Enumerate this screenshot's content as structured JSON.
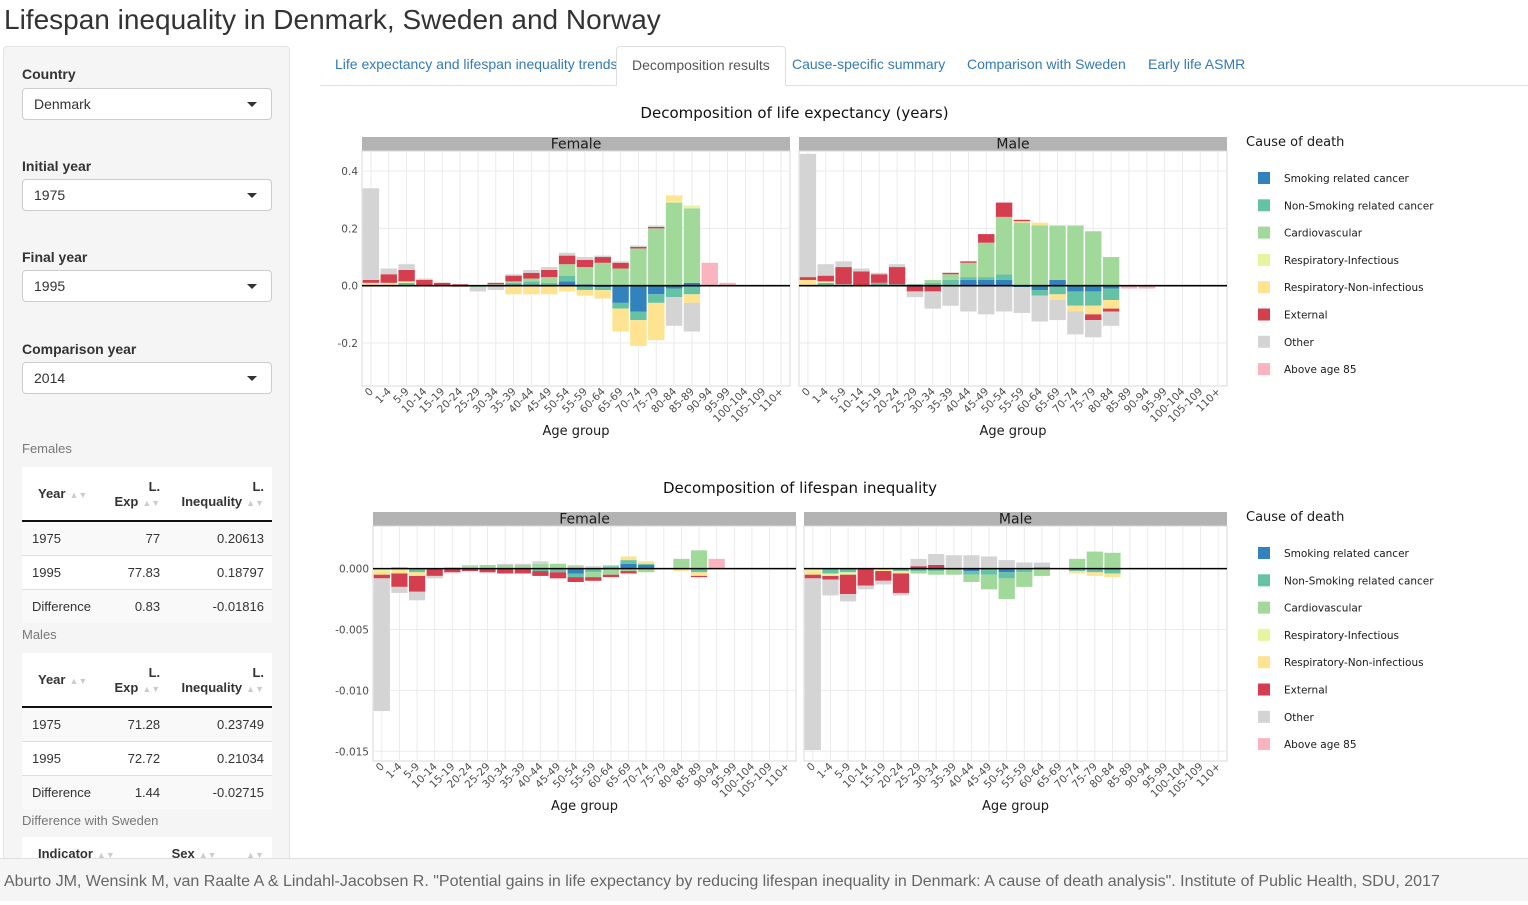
{
  "app": {
    "title": "Lifespan inequality in Denmark, Sweden and Norway"
  },
  "sidebar": {
    "country": {
      "label": "Country",
      "value": "Denmark"
    },
    "initial_year": {
      "label": "Initial year",
      "value": "1975"
    },
    "final_year": {
      "label": "Final year",
      "value": "1995"
    },
    "comparison_year": {
      "label": "Comparison year",
      "value": "2014"
    },
    "females_label": "Females",
    "males_label": "Males",
    "table_headers": {
      "year": "Year",
      "lexp_1": "L.",
      "lexp_2": "Exp",
      "lineq_1": "L.",
      "lineq_2": "Inequality"
    },
    "females_rows": [
      [
        "1975",
        "77",
        "0.20613"
      ],
      [
        "1995",
        "77.83",
        "0.18797"
      ],
      [
        "Difference",
        "0.83",
        "-0.01816"
      ]
    ],
    "males_rows": [
      [
        "1975",
        "71.28",
        "0.23749"
      ],
      [
        "1995",
        "72.72",
        "0.21034"
      ],
      [
        "Difference",
        "1.44",
        "-0.02715"
      ]
    ],
    "sweden_label": "Difference with Sweden",
    "sweden_headers": {
      "indicator": "Indicator",
      "sex": "Sex"
    }
  },
  "tabs": [
    {
      "label": "Life expectancy and lifespan inequality trends",
      "active": false
    },
    {
      "label": "Decomposition results",
      "active": true
    },
    {
      "label": "Cause-specific summary",
      "active": false
    },
    {
      "label": "Comparison with Sweden",
      "active": false
    },
    {
      "label": "Early life ASMR",
      "active": false
    }
  ],
  "footer": "Aburto JM, Wensink M, van Raalte A & Lindahl-Jacobsen R. \"Potential gains in life expectancy by reducing lifespan inequality in Denmark: A cause of death analysis\". Institute of Public Health, SDU, 2017",
  "colors": {
    "Smoking related cancer": "#3182bd",
    "Non-Smoking related cancer": "#66c2a4",
    "Cardiovascular": "#a1d99b",
    "Respiratory-Infectious": "#e5f5a0",
    "Respiratory-Non-infectious": "#fee391",
    "External": "#d53e4f",
    "Other": "#d4d4d4",
    "Above age 85": "#f9b4c0"
  },
  "chart_data": [
    {
      "type": "bar",
      "stacked": true,
      "title": "Decomposition of life expectancy (years)",
      "xlabel": "Age group",
      "legend_title": "Cause of death",
      "legend": "right",
      "grid": true,
      "ylim": [
        -0.35,
        0.47
      ],
      "yticks": [
        -0.2,
        0.0,
        0.2,
        0.4
      ],
      "ytick_labels": [
        "-0.2",
        "0.0",
        "0.2",
        "0.4"
      ],
      "categories": [
        "0",
        "1-4",
        "5-9",
        "10-14",
        "15-19",
        "20-24",
        "25-29",
        "30-34",
        "35-39",
        "40-44",
        "45-49",
        "50-54",
        "55-59",
        "60-64",
        "65-69",
        "70-74",
        "75-79",
        "80-84",
        "85-89",
        "90-94",
        "95-99",
        "100-104",
        "105-109",
        "110+"
      ],
      "causes": [
        "Smoking related cancer",
        "Non-Smoking related cancer",
        "Cardiovascular",
        "Respiratory-Infectious",
        "Respiratory-Non-infectious",
        "External",
        "Other",
        "Above age 85"
      ],
      "panels": [
        {
          "name": "Female",
          "values": [
            {
              "Other": 0.32,
              "External": 0.01,
              "Respiratory-Non-infectious": 0.01
            },
            {
              "Other": 0.02,
              "External": 0.03,
              "Respiratory-Non-infectious": 0.01
            },
            {
              "Other": 0.02,
              "External": 0.04,
              "Respiratory-Infectious": 0.005,
              "Non-Smoking related cancer": 0.01
            },
            {
              "Other": 0.005,
              "External": 0.02
            },
            {
              "External": 0.01
            },
            {
              "Other": -0.005,
              "External": 0.005
            },
            {
              "Other": -0.015,
              "Cardiovascular": -0.005
            },
            {
              "Other": -0.015,
              "Cardiovascular": 0.005,
              "External": 0.005
            },
            {
              "Other": 0.005,
              "Cardiovascular": 0.005,
              "External": 0.02,
              "Non-Smoking related cancer": 0.005,
              "Smoking related cancer": 0.005,
              "Respiratory-Non-infectious": -0.03
            },
            {
              "Other": 0.01,
              "Cardiovascular": 0.01,
              "External": 0.02,
              "Non-Smoking related cancer": 0.01,
              "Smoking related cancer": 0.005,
              "Respiratory-Non-infectious": -0.03
            },
            {
              "Other": 0.01,
              "Cardiovascular": 0.02,
              "External": 0.025,
              "Non-Smoking related cancer": 0.01,
              "Respiratory-Non-infectious": -0.03
            },
            {
              "Other": 0.01,
              "Cardiovascular": 0.04,
              "External": 0.03,
              "Non-Smoking related cancer": 0.02,
              "Smoking related cancer": 0.015,
              "Respiratory-Non-infectious": -0.02
            },
            {
              "Other": 0.01,
              "Cardiovascular": 0.06,
              "External": 0.025,
              "Smoking related cancer": 0.005,
              "Respiratory-Non-infectious": -0.02,
              "Non-Smoking related cancer": -0.015
            },
            {
              "Other": 0.005,
              "Cardiovascular": 0.08,
              "External": 0.02,
              "Respiratory-Non-infectious": -0.03,
              "Non-Smoking related cancer": -0.01,
              "Smoking related cancer": -0.005
            },
            {
              "Other": 0.005,
              "Cardiovascular": 0.06,
              "External": 0.02,
              "Respiratory-Non-infectious": -0.08,
              "Non-Smoking related cancer": -0.02,
              "Smoking related cancer": -0.06
            },
            {
              "Other": 0.005,
              "Cardiovascular": 0.13,
              "External": 0.005,
              "Respiratory-Non-infectious": -0.09,
              "Non-Smoking related cancer": -0.03,
              "Smoking related cancer": -0.09
            },
            {
              "Other": 0.005,
              "Cardiovascular": 0.2,
              "External": 0.005,
              "Respiratory-Non-infectious": -0.13,
              "Non-Smoking related cancer": -0.03,
              "Smoking related cancer": -0.03
            },
            {
              "Respiratory-Infectious": 0.005,
              "Respiratory-Non-infectious": 0.02,
              "Cardiovascular": 0.29,
              "Other": -0.1,
              "Non-Smoking related cancer": -0.03,
              "Smoking related cancer": -0.01
            },
            {
              "Respiratory-Infectious": 0.01,
              "Respiratory-Non-infectious": -0.03,
              "Cardiovascular": 0.26,
              "Smoking related cancer": 0.01,
              "Other": -0.1,
              "Non-Smoking related cancer": -0.03
            },
            {
              "Above age 85": 0.08
            },
            {
              "Above age 85": 0.01
            },
            {},
            {},
            {},
            {}
          ]
        },
        {
          "name": "Male",
          "values": [
            {
              "Other": 0.43,
              "External": 0.01,
              "Respiratory-Non-infectious": 0.02
            },
            {
              "Other": 0.04,
              "External": 0.02,
              "Respiratory-Infectious": 0.005,
              "Non-Smoking related cancer": 0.01
            },
            {
              "Other": 0.02,
              "External": 0.06,
              "Cardiovascular": 0.005
            },
            {
              "Other": 0.01,
              "External": 0.05
            },
            {
              "Other": 0.005,
              "External": 0.03,
              "Non-Smoking related cancer": 0.01
            },
            {
              "Other": 0.01,
              "External": 0.06,
              "Non-Smoking related cancer": 0.005
            },
            {
              "Other": -0.02,
              "External": -0.02,
              "Non-Smoking related cancer": 0.005
            },
            {
              "Other": -0.06,
              "External": -0.02,
              "Cardiovascular": 0.01,
              "Non-Smoking related cancer": 0.01
            },
            {
              "Other": -0.07,
              "Cardiovascular": 0.02,
              "External": 0.005,
              "Non-Smoking related cancer": 0.02
            },
            {
              "Other": -0.09,
              "Cardiovascular": 0.05,
              "External": 0.005,
              "Non-Smoking related cancer": 0.01,
              "Smoking related cancer": 0.02
            },
            {
              "Other": -0.1,
              "Cardiovascular": 0.12,
              "External": 0.03,
              "Non-Smoking related cancer": 0.01,
              "Smoking related cancer": 0.02
            },
            {
              "Other": -0.09,
              "Cardiovascular": 0.2,
              "External": 0.05,
              "Non-Smoking related cancer": 0.02,
              "Smoking related cancer": 0.02
            },
            {
              "Other": -0.09,
              "Cardiovascular": 0.22,
              "External": 0.005,
              "Respiratory-Non-infectious": 0.005,
              "Smoking related cancer": -0.005
            },
            {
              "Other": -0.09,
              "Cardiovascular": 0.21,
              "Respiratory-Non-infectious": 0.01,
              "Non-Smoking related cancer": -0.02,
              "Smoking related cancer": -0.015
            },
            {
              "Other": -0.07,
              "Cardiovascular": 0.19,
              "Respiratory-Non-infectious": -0.02,
              "Non-Smoking related cancer": -0.03,
              "Smoking related cancer": 0.02
            },
            {
              "Cardiovascular": 0.21,
              "Respiratory-Non-infectious": -0.02,
              "Other": -0.08,
              "Non-Smoking related cancer": -0.05,
              "Smoking related cancer": -0.02
            },
            {
              "Cardiovascular": 0.19,
              "Respiratory-Non-infectious": -0.03,
              "Other": -0.06,
              "External": -0.02,
              "Non-Smoking related cancer": -0.05,
              "Smoking related cancer": -0.02
            },
            {
              "Cardiovascular": 0.1,
              "Respiratory-Non-infectious": -0.03,
              "Other": -0.05,
              "External": -0.01,
              "Non-Smoking related cancer": -0.04,
              "Smoking related cancer": -0.01
            },
            {
              "Above age 85": -0.01
            },
            {
              "Above age 85": -0.01
            },
            {},
            {},
            {},
            {}
          ]
        }
      ]
    },
    {
      "type": "bar",
      "stacked": true,
      "title": "Decomposition of lifespan inequality",
      "xlabel": "Age group",
      "legend_title": "Cause of death",
      "legend": "right",
      "grid": true,
      "ylim": [
        -0.0158,
        0.0035
      ],
      "yticks": [
        -0.015,
        -0.01,
        -0.005,
        0.0
      ],
      "ytick_labels": [
        "-0.015",
        "-0.010",
        "-0.005",
        "0.000"
      ],
      "categories": [
        "0",
        "1-4",
        "5-9",
        "10-14",
        "15-19",
        "20-24",
        "25-29",
        "30-34",
        "35-39",
        "40-44",
        "45-49",
        "50-54",
        "55-59",
        "60-64",
        "65-69",
        "70-74",
        "75-79",
        "80-84",
        "85-89",
        "90-94",
        "95-99",
        "100-104",
        "105-109",
        "110+"
      ],
      "causes": [
        "Smoking related cancer",
        "Non-Smoking related cancer",
        "Cardiovascular",
        "Respiratory-Infectious",
        "Respiratory-Non-infectious",
        "External",
        "Other",
        "Above age 85"
      ],
      "panels": [
        {
          "name": "Female",
          "values": [
            {
              "Other": -0.0109,
              "External": -0.0003,
              "Respiratory-Non-infectious": -0.0003,
              "Respiratory-Infectious": -0.0002
            },
            {
              "Non-Smoking related cancer": 0.0001,
              "External": -0.0011,
              "Other": -0.0005,
              "Respiratory-Non-infectious": -0.0003,
              "Respiratory-Infectious": -0.0001
            },
            {
              "External": -0.0013,
              "Other": -0.0007,
              "Respiratory-Non-infectious": -0.0003,
              "Non-Smoking related cancer": -0.0003
            },
            {
              "External": -0.0006,
              "Other": -0.0002
            },
            {
              "External": -0.0003,
              "Cardiovascular": 0.0001,
              "Other": -0.0001
            },
            {
              "Other": 0.0001,
              "Cardiovascular": 0.0002,
              "External": -0.0002
            },
            {
              "Cardiovascular": 0.0003,
              "External": -0.0003,
              "Other": -0.0001
            },
            {
              "Cardiovascular": 0.0003,
              "External": -0.0004,
              "Other": 0.0001
            },
            {
              "Cardiovascular": 0.0003,
              "Other": 0.0001,
              "External": -0.0004
            },
            {
              "Cardiovascular": 0.0004,
              "Other": 0.0002,
              "External": -0.0004,
              "Non-Smoking related cancer": -0.0002
            },
            {
              "Cardiovascular": 0.0004,
              "External": -0.0005,
              "Non-Smoking related cancer": -0.0003
            },
            {
              "Cardiovascular": 0.0002,
              "Other": 0.0001,
              "External": -0.0004,
              "Non-Smoking related cancer": -0.0003,
              "Smoking related cancer": -0.0004
            },
            {
              "Cardiovascular": -0.0004,
              "Other": 0.0002,
              "External": -0.0003,
              "Non-Smoking related cancer": -0.0003
            },
            {
              "Cardiovascular": -0.0005,
              "Other": 0.0001,
              "Non-Smoking related cancer": 0.0002,
              "External": -0.0002
            },
            {
              "Cardiovascular": -0.0002,
              "Respiratory-Non-infectious": 0.0003,
              "Non-Smoking related cancer": 0.0003,
              "Smoking related cancer": 0.0004,
              "External": -0.0002
            },
            {
              "Cardiovascular": -0.0003,
              "Respiratory-Non-infectious": 0.0002,
              "Non-Smoking related cancer": 0.0001,
              "Smoking related cancer": 0.0003
            },
            {},
            {
              "Cardiovascular": 0.0008,
              "Respiratory-Non-infectious": -0.0002
            },
            {
              "Cardiovascular": 0.0015,
              "Non-Smoking related cancer": -0.0003,
              "Respiratory-Non-infectious": -0.0003,
              "External": -0.0001
            },
            {
              "Above age 85": 0.0008
            },
            {},
            {},
            {},
            {}
          ]
        },
        {
          "name": "Male",
          "values": [
            {
              "Other": -0.0141,
              "External": -0.0003,
              "Respiratory-Non-infectious": -0.0003,
              "Respiratory-Infectious": -0.0002
            },
            {
              "Other": -0.0013,
              "External": -0.0003,
              "Respiratory-Infectious": -0.0002,
              "Non-Smoking related cancer": -0.0004
            },
            {
              "Other": -0.0006,
              "External": -0.0016,
              "Respiratory-Infectious": -0.0002,
              "Non-Smoking related cancer": -0.0003
            },
            {
              "Other": -0.0003,
              "External": -0.0014
            },
            {
              "Other": -0.0003,
              "External": -0.0008,
              "Respiratory-Non-infectious": -0.0002
            },
            {
              "Other": -0.0002,
              "External": -0.0016,
              "Respiratory-Non-infectious": -0.0002,
              "Non-Smoking related cancer": -0.0002
            },
            {
              "Other": 0.0006,
              "External": 0.0002,
              "Cardiovascular": -0.0002,
              "Non-Smoking related cancer": -0.0002
            },
            {
              "Other": 0.0009,
              "External": 0.0003,
              "Cardiovascular": -0.0003,
              "Non-Smoking related cancer": -0.0002
            },
            {
              "Other": 0.0011,
              "Cardiovascular": -0.0004,
              "Smoking related cancer": -0.0001
            },
            {
              "Other": 0.0011,
              "Cardiovascular": -0.0006,
              "Non-Smoking related cancer": -0.0003,
              "Smoking related cancer": -0.0002
            },
            {
              "Other": 0.001,
              "Cardiovascular": -0.0012,
              "Non-Smoking related cancer": -0.0004,
              "Smoking related cancer": -0.0001
            },
            {
              "Other": 0.0007,
              "Cardiovascular": -0.0017,
              "Non-Smoking related cancer": -0.0005,
              "Smoking related cancer": -0.0003
            },
            {
              "Other": 0.0005,
              "Cardiovascular": -0.0012,
              "Non-Smoking related cancer": -0.0003
            },
            {
              "Other": 0.0004,
              "Smoking related cancer": 0.0001,
              "Cardiovascular": -0.0006
            },
            {},
            {
              "Cardiovascular": 0.0008,
              "Respiratory-Non-infectious": -0.0002,
              "Non-Smoking related cancer": -0.0002
            },
            {
              "Cardiovascular": 0.0014,
              "Respiratory-Non-infectious": -0.0003,
              "Non-Smoking related cancer": -0.0003
            },
            {
              "Cardiovascular": 0.0013,
              "Respiratory-Non-infectious": -0.0003,
              "Non-Smoking related cancer": -0.0003,
              "Smoking related cancer": -0.0001
            },
            {},
            {},
            {},
            {},
            {},
            {}
          ]
        }
      ]
    }
  ]
}
